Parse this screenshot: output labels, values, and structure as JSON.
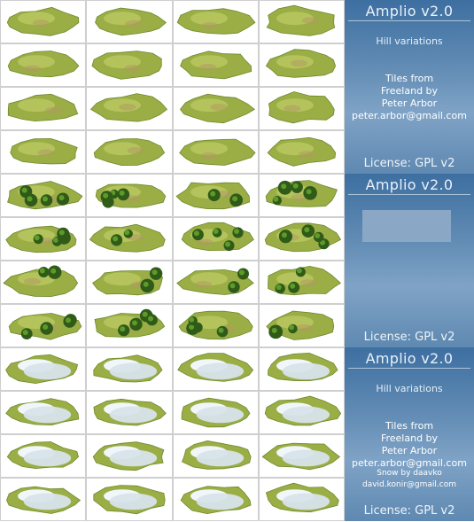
{
  "panels": [
    {
      "title": "Amplio v2.0",
      "subtitle": "Hill variations",
      "credits": [
        "Tiles from",
        "Freeland by",
        "Peter Arbor",
        "peter.arbor@gmail.com"
      ],
      "snow_credits": [],
      "license": "License: GPL v2"
    },
    {
      "title": "Amplio v2.0",
      "subtitle": "",
      "credits": [],
      "snow_credits": [],
      "license": "License: GPL v2"
    },
    {
      "title": "Amplio v2.0",
      "subtitle": "Hill variations",
      "credits": [
        "Tiles from",
        "Freeland by",
        "Peter Arbor",
        "peter.arbor@gmail.com"
      ],
      "snow_credits": [
        "Snow by daavko",
        "david.konir@gmail.com"
      ],
      "license": "License: GPL v2"
    }
  ],
  "tile_sets": [
    {
      "name": "plain-hill",
      "rows": 4,
      "cols": 4,
      "trees": false,
      "snow": false
    },
    {
      "name": "wooded-hill",
      "rows": 4,
      "cols": 4,
      "trees": true,
      "snow": false
    },
    {
      "name": "snowy-hill",
      "rows": 4,
      "cols": 4,
      "trees": false,
      "snow": true
    }
  ],
  "colors": {
    "grass_light": "#b9c760",
    "grass_mid": "#9aae45",
    "grass_dark": "#6d8a2c",
    "dirt": "#b09a62",
    "tree_dark": "#2f5a18",
    "tree_light": "#5e9a2a",
    "snow": "#f1f6fa",
    "snow_shade": "#d7e3ea"
  }
}
